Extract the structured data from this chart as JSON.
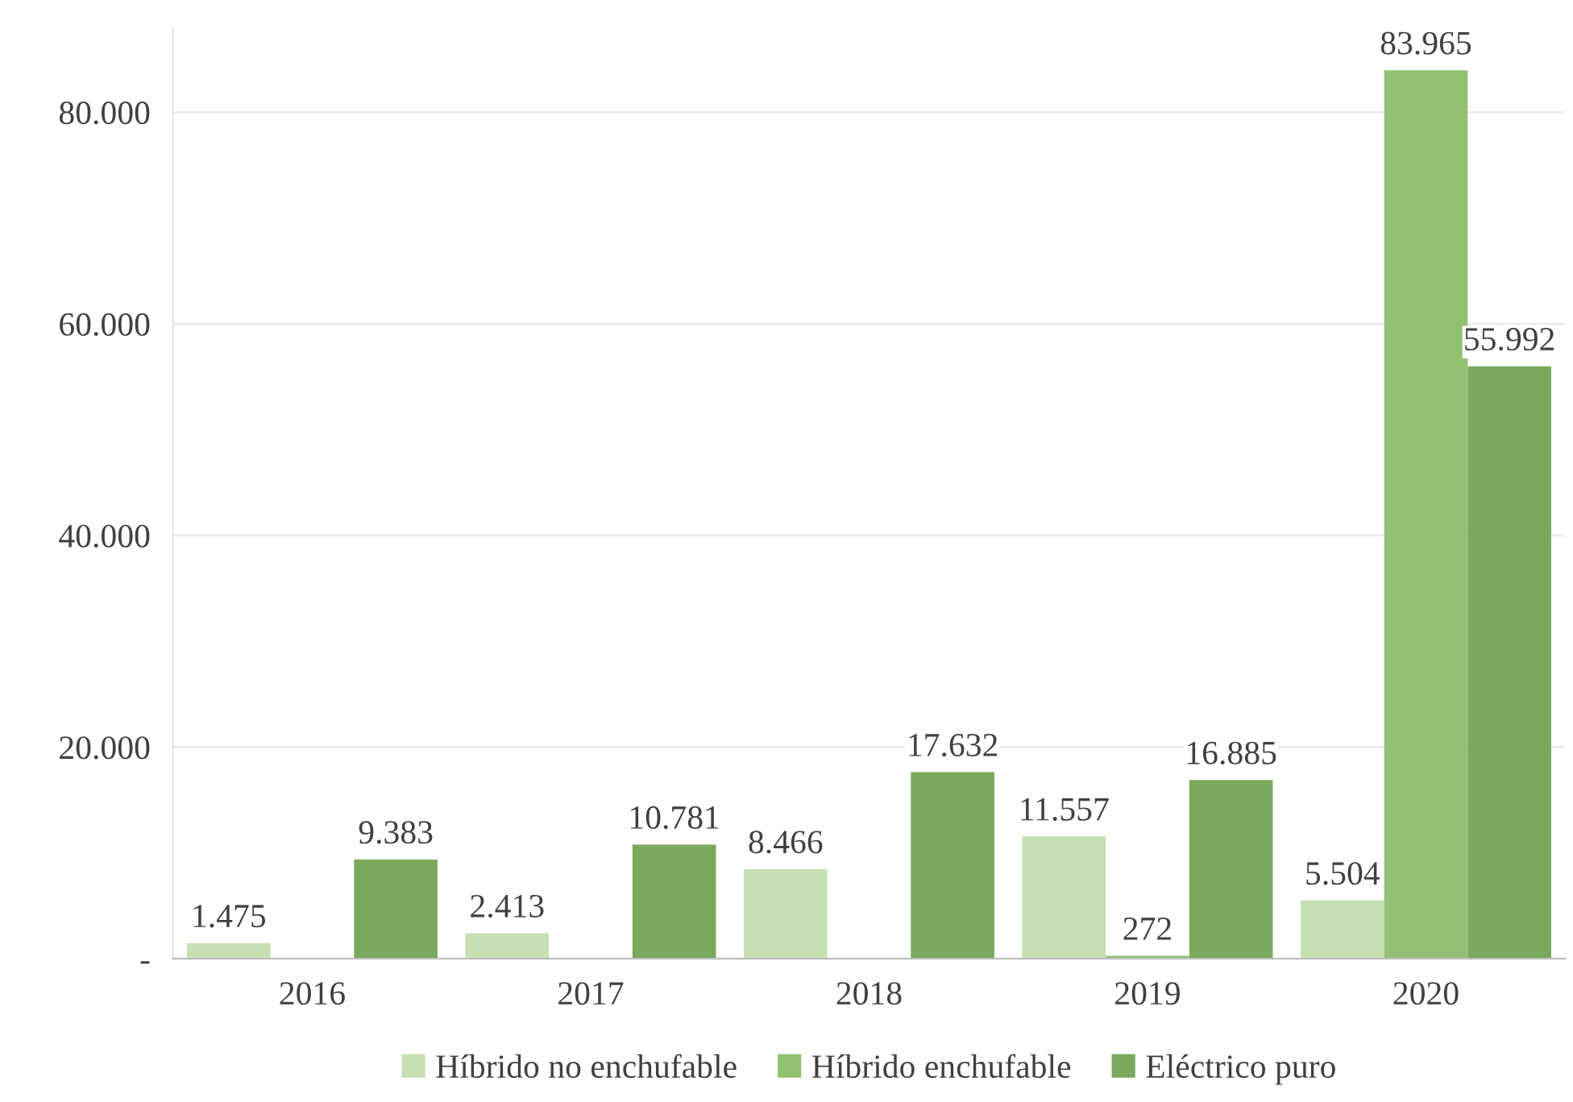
{
  "chart_data": {
    "type": "bar",
    "categories": [
      "2016",
      "2017",
      "2018",
      "2019",
      "2020"
    ],
    "series": [
      {
        "name": "Híbrido no enchufable",
        "color": "#c6e0b4",
        "values": [
          1475,
          2413,
          8466,
          11557,
          5504
        ],
        "value_labels": [
          "1.475",
          "2.413",
          "8.466",
          "11.557",
          "5.504"
        ]
      },
      {
        "name": "Híbrido enchufable",
        "color": "#92c173",
        "values": [
          null,
          null,
          null,
          272,
          83965
        ],
        "value_labels": [
          null,
          null,
          null,
          "272",
          "83.965"
        ]
      },
      {
        "name": "Eléctrico puro",
        "color": "#7aa95e",
        "values": [
          9383,
          10781,
          17632,
          16885,
          55992
        ],
        "value_labels": [
          "9.383",
          "10.781",
          "17.632",
          "16.885",
          "55.992"
        ]
      }
    ],
    "ylim": [
      0,
      88000
    ],
    "yticks": [
      {
        "value": 0,
        "label": "-"
      },
      {
        "value": 20000,
        "label": "20.000"
      },
      {
        "value": 40000,
        "label": "40.000"
      },
      {
        "value": 60000,
        "label": "60.000"
      },
      {
        "value": 80000,
        "label": "80.000"
      }
    ],
    "grid": "y",
    "legend": "bottom"
  }
}
